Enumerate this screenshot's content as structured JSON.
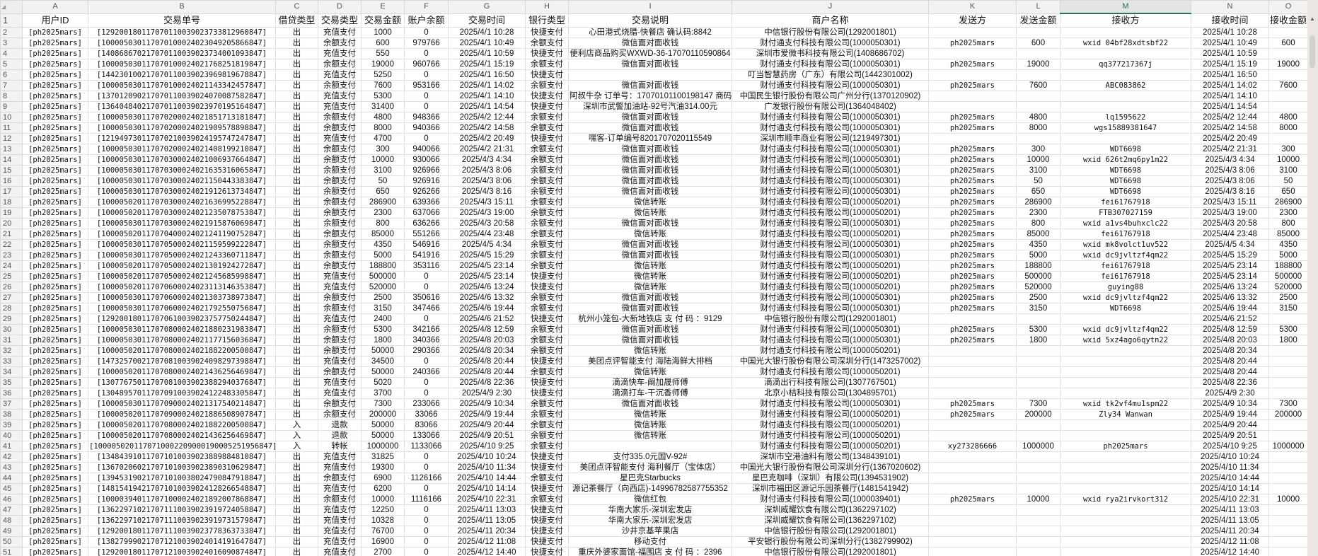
{
  "sheet": {
    "selected_column": "M",
    "accent_color": "#1e7a4b",
    "column_letters": [
      "A",
      "B",
      "C",
      "D",
      "E",
      "F",
      "G",
      "H",
      "I",
      "J",
      "K",
      "L",
      "M",
      "N",
      "O"
    ],
    "header_row_number": "1",
    "headers": [
      "用户ID",
      "交易单号",
      "借贷类型",
      "交易类型",
      "交易金额",
      "账户余额",
      "交易时间",
      "银行类型",
      "交易说明",
      "商户名称",
      "发送方",
      "发送金额",
      "接收方",
      "接收时间",
      "接收金额"
    ],
    "rows": [
      [
        "2",
        "[ph2025mars]",
        "[129200180117070110039023733812960847]",
        "出",
        "充值支付",
        "1000",
        "0",
        "2025/4/1 10:28",
        "快捷支付",
        "心田港式烧腊-快餐店 确认码:8842",
        "中信银行股份有限公司(1292001801)",
        "",
        "",
        "",
        "2025/4/1 10:28",
        ""
      ],
      [
        "3",
        "[ph2025mars]",
        "[100005030117070100024023049205866847]",
        "出",
        "余额支付",
        "600",
        "979766",
        "2025/4/1 10:49",
        "余额支付",
        "微信面对面收钱",
        "财付通支付科技有限公司(1000050301)",
        "ph2025mars",
        "600",
        "wxid 04bf28xdtsbf22",
        "2025/4/1 10:49",
        "600"
      ],
      [
        "4",
        "[ph2025mars]",
        "[140868670217070110039023734001093847]",
        "出",
        "充值支付",
        "550",
        "0",
        "2025/4/1 10:59",
        "快捷支付",
        "便利店商品购买WXWD-36-17070110590864",
        "深圳市爱微书科技有限公司(1408686702)",
        "",
        "",
        "",
        "2025/4/1 10:59",
        ""
      ],
      [
        "5",
        "[ph2025mars]",
        "[100005030117070100024021768251819847]",
        "出",
        "余额支付",
        "19000",
        "960766",
        "2025/4/1 15:19",
        "余额支付",
        "微信面对面收钱",
        "财付通支付科技有限公司(1000050301)",
        "ph2025mars",
        "19000",
        "qq377217367j",
        "2025/4/1 15:19",
        "19000"
      ],
      [
        "6",
        "[ph2025mars]",
        "[144230100217070110039023969819678847]",
        "出",
        "充值支付",
        "5250",
        "0",
        "2025/4/1 16:50",
        "快捷支付",
        "",
        "叮当智慧药房（广东）有限公司(1442301002)",
        "",
        "",
        "",
        "2025/4/1 16:50",
        ""
      ],
      [
        "7",
        "[ph2025mars]",
        "[100005030117070100024021143342457847]",
        "出",
        "余额支付",
        "7600",
        "953166",
        "2025/4/1 14:02",
        "余额支付",
        "微信面对面收钱",
        "财付通支付科技有限公司(1000050301)",
        "ph2025mars",
        "7600",
        "ABC083862",
        "2025/4/1 14:02",
        "7600"
      ],
      [
        "8",
        "[ph2025mars]",
        "[137012090217070110039024070087582847]",
        "出",
        "充值支付",
        "5300",
        "0",
        "2025/4/1 14:10",
        "快捷支付",
        "阿叔牛杂 订单号：17070101100198147 商码",
        "中国民生银行股份有限公司广州分行(1370120902)",
        "",
        "",
        "",
        "2025/4/1 14:10",
        ""
      ],
      [
        "9",
        "[ph2025mars]",
        "[136404840217070110039023970195164847]",
        "出",
        "充值支付",
        "31400",
        "0",
        "2025/4/1 14:54",
        "快捷支付",
        "深圳市武警加油站-92号汽油314.00元",
        "广发银行股份有限公司(1364048402)",
        "",
        "",
        "",
        "2025/4/1 14:54",
        ""
      ],
      [
        "10",
        "[ph2025mars]",
        "[100005030117070200024021851713181847]",
        "出",
        "余额支付",
        "4800",
        "948366",
        "2025/4/2 12:44",
        "余额支付",
        "微信面对面收钱",
        "财付通支付科技有限公司(1000050301)",
        "ph2025mars",
        "4800",
        "lq1595622",
        "2025/4/2 12:44",
        "4800"
      ],
      [
        "11",
        "[ph2025mars]",
        "[100005030117070200024021909578898847]",
        "出",
        "余额支付",
        "8000",
        "940366",
        "2025/4/2 14:58",
        "余额支付",
        "微信面对面收钱",
        "财付通支付科技有限公司(1000050301)",
        "ph2025mars",
        "8000",
        "wgs15889381647",
        "2025/4/2 14:58",
        "8000"
      ],
      [
        "12",
        "[ph2025mars]",
        "[121949730117070210039024195747247847]",
        "出",
        "充值支付",
        "4700",
        "0",
        "2025/4/2 20:49",
        "快捷支付",
        "嘿客-订单编号8201707020115549",
        "深圳市顺丰商业有限公司(1219497301)",
        "",
        "",
        "",
        "2025/4/2 20:49",
        ""
      ],
      [
        "13",
        "[ph2025mars]",
        "[100005030117070200024021408199210847]",
        "出",
        "余额支付",
        "300",
        "940066",
        "2025/4/2 21:31",
        "余额支付",
        "微信面对面收钱",
        "财付通支付科技有限公司(1000050301)",
        "ph2025mars",
        "300",
        "WDT6698",
        "2025/4/2 21:31",
        "300"
      ],
      [
        "14",
        "[ph2025mars]",
        "[100005030117070300024021006937664847]",
        "出",
        "余额支付",
        "10000",
        "930066",
        "2025/4/3 4:34",
        "余额支付",
        "微信面对面收钱",
        "财付通支付科技有限公司(1000050301)",
        "ph2025mars",
        "10000",
        "wxid 626t2mq6py1m22",
        "2025/4/3 4:34",
        "10000"
      ],
      [
        "15",
        "[ph2025mars]",
        "[100005030117070300024021635316065847]",
        "出",
        "余额支付",
        "3100",
        "926966",
        "2025/4/3 8:06",
        "余额支付",
        "微信面对面收钱",
        "财付通支付科技有限公司(1000050301)",
        "ph2025mars",
        "3100",
        "WDT6698",
        "2025/4/3 8:06",
        "3100"
      ],
      [
        "16",
        "[ph2025mars]",
        "[100005030117070300024021150443383847]",
        "出",
        "余额支付",
        "50",
        "926916",
        "2025/4/3 8:06",
        "余额支付",
        "微信面对面收钱",
        "财付通支付科技有限公司(1000050301)",
        "ph2025mars",
        "50",
        "WDT6698",
        "2025/4/3 8:06",
        "50"
      ],
      [
        "17",
        "[ph2025mars]",
        "[100005030117070300024021912613734847]",
        "出",
        "余额支付",
        "650",
        "926266",
        "2025/4/3 8:16",
        "余额支付",
        "微信面对面收钱",
        "财付通支付科技有限公司(1000050301)",
        "ph2025mars",
        "650",
        "WDT6698",
        "2025/4/3 8:16",
        "650"
      ],
      [
        "18",
        "[ph2025mars]",
        "[100005020117070300024021636995228847]",
        "出",
        "余额支付",
        "286900",
        "639366",
        "2025/4/3 15:11",
        "余额支付",
        "微信转账",
        "财付通支付科技有限公司(1000050201)",
        "ph2025mars",
        "286900",
        "fei61767918",
        "2025/4/3 15:11",
        "286900"
      ],
      [
        "19",
        "[ph2025mars]",
        "[100005020117070300024021235078753847]",
        "出",
        "余额支付",
        "2300",
        "637066",
        "2025/4/3 19:00",
        "余额支付",
        "微信转账",
        "财付通支付科技有限公司(1000050201)",
        "ph2025mars",
        "2300",
        "FTB307027159",
        "2025/4/3 19:00",
        "2300"
      ],
      [
        "20",
        "[ph2025mars]",
        "[100005030117070300024021915876069847]",
        "出",
        "余额支付",
        "800",
        "636266",
        "2025/4/3 20:58",
        "余额支付",
        "微信面对面收钱",
        "财付通支付科技有限公司(1000050301)",
        "ph2025mars",
        "800",
        "wxid a1vs4buhxclc22",
        "2025/4/3 20:58",
        "800"
      ],
      [
        "21",
        "[ph2025mars]",
        "[100005020117070400024021241190752847]",
        "出",
        "余额支付",
        "85000",
        "551266",
        "2025/4/4 23:48",
        "余额支付",
        "微信转账",
        "财付通支付科技有限公司(1000050201)",
        "ph2025mars",
        "85000",
        "fei61767918",
        "2025/4/4 23:48",
        "85000"
      ],
      [
        "22",
        "[ph2025mars]",
        "[100005030117070500024021159599222847]",
        "出",
        "余额支付",
        "4350",
        "546916",
        "2025/4/5 4:34",
        "余额支付",
        "微信面对面收钱",
        "财付通支付科技有限公司(1000050301)",
        "ph2025mars",
        "4350",
        "wxid mk8volct1uv522",
        "2025/4/5 4:34",
        "4350"
      ],
      [
        "23",
        "[ph2025mars]",
        "[100005030117070500024021243360711847]",
        "出",
        "余额支付",
        "5000",
        "541916",
        "2025/4/5 15:29",
        "余额支付",
        "微信面对面收钱",
        "财付通支付科技有限公司(1000050301)",
        "ph2025mars",
        "5000",
        "wxid dc9jvltzf4qm22",
        "2025/4/5 15:29",
        "5000"
      ],
      [
        "24",
        "[ph2025mars]",
        "[100005020117070500024021301924272847]",
        "出",
        "余额支付",
        "188800",
        "353116",
        "2025/4/5 23:14",
        "余额支付",
        "微信转账",
        "财付通支付科技有限公司(1000050201)",
        "ph2025mars",
        "188800",
        "fei61767918",
        "2025/4/5 23:14",
        "188800"
      ],
      [
        "25",
        "[ph2025mars]",
        "[100005020117070500024021245685998847]",
        "出",
        "充值支付",
        "500000",
        "0",
        "2025/4/5 23:14",
        "快捷支付",
        "微信转账",
        "财付通支付科技有限公司(1000050201)",
        "ph2025mars",
        "500000",
        "fei61767918",
        "2025/4/5 23:14",
        "500000"
      ],
      [
        "26",
        "[ph2025mars]",
        "[100005020117070600024023113146353847]",
        "出",
        "充值支付",
        "520000",
        "0",
        "2025/4/6 13:24",
        "快捷支付",
        "微信转账",
        "财付通支付科技有限公司(1000050201)",
        "ph2025mars",
        "520000",
        "guying88",
        "2025/4/6 13:24",
        "520000"
      ],
      [
        "27",
        "[ph2025mars]",
        "[100005030117070600024021303738973847]",
        "出",
        "余额支付",
        "2500",
        "350616",
        "2025/4/6 13:32",
        "余额支付",
        "微信面对面收钱",
        "财付通支付科技有限公司(1000050301)",
        "ph2025mars",
        "2500",
        "wxid dc9jvltzf4qm22",
        "2025/4/6 13:32",
        "2500"
      ],
      [
        "28",
        "[ph2025mars]",
        "[100005030117070600024021792550756847]",
        "出",
        "余额支付",
        "3150",
        "347466",
        "2025/4/6 19:44",
        "余额支付",
        "微信面对面收钱",
        "财付通支付科技有限公司(1000050301)",
        "ph2025mars",
        "3150",
        "WDT6698",
        "2025/4/6 19:44",
        "3150"
      ],
      [
        "29",
        "[ph2025mars]",
        "[129200180117070610039023757750244847]",
        "出",
        "充值支付",
        "2400",
        "0",
        "2025/4/6 21:52",
        "快捷支付",
        "杭州小笼包-大新地铁店 支 付 码 ：9129",
        "中信银行股份有限公司(1292001801)",
        "",
        "",
        "",
        "2025/4/6 21:52",
        ""
      ],
      [
        "30",
        "[ph2025mars]",
        "[100005030117070800024021880231983847]",
        "出",
        "余额支付",
        "5300",
        "342166",
        "2025/4/8 12:59",
        "余额支付",
        "微信面对面收钱",
        "财付通支付科技有限公司(1000050301)",
        "ph2025mars",
        "5300",
        "wxid dc9jvltzf4qm22",
        "2025/4/8 12:59",
        "5300"
      ],
      [
        "31",
        "[ph2025mars]",
        "[100005030117070800024021177156036847]",
        "出",
        "余额支付",
        "1800",
        "340366",
        "2025/4/8 20:03",
        "余额支付",
        "微信面对面收钱",
        "财付通支付科技有限公司(1000050301)",
        "ph2025mars",
        "1800",
        "wxid 5xz4ago6qytn22",
        "2025/4/8 20:03",
        "1800"
      ],
      [
        "32",
        "[ph2025mars]",
        "[100005020117070800024021882200500847]",
        "出",
        "余额支付",
        "50000",
        "290366",
        "2025/4/8 20:34",
        "余额支付",
        "微信转账",
        "财付通支付科技有限公司(1000050201)",
        "",
        "",
        "",
        "2025/4/8 20:34",
        ""
      ],
      [
        "33",
        "[ph2025mars]",
        "[147325700217070810039024098297398847]",
        "出",
        "充值支付",
        "34500",
        "0",
        "2025/4/8 20:44",
        "快捷支付",
        "美团点评智能支付 海陆海鲜大排档",
        "中国光大银行股份有限公司深圳分行(1473257002)",
        "",
        "",
        "",
        "2025/4/8 20:44",
        ""
      ],
      [
        "34",
        "[ph2025mars]",
        "[100005020117070800024021436256469847]",
        "出",
        "余额支付",
        "50000",
        "240366",
        "2025/4/8 20:44",
        "余额支付",
        "微信转账",
        "财付通支付科技有限公司(1000050201)",
        "",
        "",
        "",
        "2025/4/8 20:44",
        ""
      ],
      [
        "35",
        "[ph2025mars]",
        "[130776750117070810039023882940376847]",
        "出",
        "充值支付",
        "5020",
        "0",
        "2025/4/8 22:36",
        "快捷支付",
        "滴滴快车-阚加晟师傅",
        "滴滴出行科技有限公司(1307767501)",
        "",
        "",
        "",
        "2025/4/8 22:36",
        ""
      ],
      [
        "36",
        "[ph2025mars]",
        "[130489570117070910039024122483305847]",
        "出",
        "充值支付",
        "3700",
        "0",
        "2025/4/9 2:30",
        "快捷支付",
        "滴滴打车-干沉香师傅",
        "北京小桔科技有限公司(1304895701)",
        "",
        "",
        "",
        "2025/4/9 2:30",
        ""
      ],
      [
        "37",
        "[ph2025mars]",
        "[100005030117070900024021317540214847]",
        "出",
        "余额支付",
        "7300",
        "233066",
        "2025/4/9 10:34",
        "余额支付",
        "微信面对面收钱",
        "财付通支付科技有限公司(1000050301)",
        "ph2025mars",
        "7300",
        "wxid tk2vf4mu1spm22",
        "2025/4/9 10:34",
        "7300"
      ],
      [
        "38",
        "[ph2025mars]",
        "[100005020117070900024021886508907847]",
        "出",
        "余额支付",
        "200000",
        "33066",
        "2025/4/9 19:44",
        "余额支付",
        "微信转账",
        "财付通支付科技有限公司(1000050201)",
        "ph2025mars",
        "200000",
        "Zly34 Wanwan",
        "2025/4/9 19:44",
        "200000"
      ],
      [
        "39",
        "[ph2025mars]",
        "[100005020117070800024021882200500847]",
        "入",
        "退款",
        "50000",
        "83066",
        "2025/4/9 20:44",
        "余额支付",
        "微信转账",
        "财付通支付科技有限公司(1000050201)",
        "",
        "",
        "",
        "2025/4/9 20:44",
        ""
      ],
      [
        "40",
        "[ph2025mars]",
        "[100005020117070800024021436256469847]",
        "入",
        "退款",
        "50000",
        "133066",
        "2025/4/9 20:51",
        "余额支付",
        "微信转账",
        "财付通支付科技有限公司(1000050201)",
        "",
        "",
        "",
        "2025/4/9 20:51",
        ""
      ],
      [
        "41",
        "[ph2025mars]",
        "[1000050201170710002209000190005251956847]",
        "入",
        "转帐",
        "1000000",
        "1133066",
        "2025/4/10 9:25",
        "余额支付",
        "",
        "财付通支付科技有限公司(1000050201)",
        "xy273286666",
        "1000000",
        "ph2025mars",
        "2025/4/10 9:25",
        "1000000"
      ],
      [
        "42",
        "[ph2025mars]",
        "[134843910117071010039023889884810847]",
        "出",
        "充值支付",
        "31825",
        "0",
        "2025/4/10 10:24",
        "快捷支付",
        "支付335.0元国V-92#",
        "深圳市空港油料有限公司(1348439101)",
        "",
        "",
        "",
        "2025/4/10 10:24",
        ""
      ],
      [
        "43",
        "[ph2025mars]",
        "[136702060217071010039023890310629847]",
        "出",
        "充值支付",
        "19300",
        "0",
        "2025/4/10 11:34",
        "快捷支付",
        "美团点评智能支付 海利餐厅（宝体店）",
        "中国光大银行股份有限公司深圳分行(1367020602)",
        "",
        "",
        "",
        "2025/4/10 11:34",
        ""
      ],
      [
        "44",
        "[ph2025mars]",
        "[139453190217071010038024790847918847]",
        "出",
        "余额支付",
        "6900",
        "1126166",
        "2025/4/10 14:44",
        "余额支付",
        "星巴克Starbucks",
        "星巴克咖啡（深圳）有限公司(1394531902)",
        "",
        "",
        "",
        "2025/4/10 14:44",
        ""
      ],
      [
        "45",
        "[ph2025mars]",
        "[148154194217071010039024128266548847]",
        "出",
        "充值支付",
        "6200",
        "0",
        "2025/4/10 14:14",
        "快捷支付",
        "源记茶餐厅（向西店)-14996782587755352",
        "深圳市福田区源记乐园茶餐厅(1481541942)",
        "",
        "",
        "",
        "2025/4/10 14:14",
        ""
      ],
      [
        "46",
        "[ph2025mars]",
        "[100003940117071000024021892007868847]",
        "出",
        "余额支付",
        "10000",
        "1116166",
        "2025/4/10 22:31",
        "余额支付",
        "微信红包",
        "财付通支付科技有限公司(1000039401)",
        "ph2025mars",
        "10000",
        "wxid rya2irvkort312",
        "2025/4/10 22:31",
        "10000"
      ],
      [
        "47",
        "[ph2025mars]",
        "[136229710217071110039023919724058847]",
        "出",
        "充值支付",
        "12250",
        "0",
        "2025/4/11 13:03",
        "快捷支付",
        "华南大家乐-深圳宏发店",
        "深圳威耀饮食有限公司(1362297102)",
        "",
        "",
        "",
        "2025/4/11 13:03",
        ""
      ],
      [
        "48",
        "[ph2025mars]",
        "[136229710217071110039023919731579847]",
        "出",
        "充值支付",
        "10328",
        "0",
        "2025/4/11 13:05",
        "快捷支付",
        "华南大家乐-深圳宏发店",
        "深圳威耀饮食有限公司(1362297102)",
        "",
        "",
        "",
        "2025/4/11 13:05",
        ""
      ],
      [
        "49",
        "[ph2025mars]",
        "[129200180117071110039023778363733847]",
        "出",
        "充值支付",
        "76700",
        "0",
        "2025/4/11 20:34",
        "快捷支付",
        "沙井京基苹果店",
        "中信银行股份有限公司(1292001801)",
        "",
        "",
        "",
        "2025/4/11 20:34",
        ""
      ],
      [
        "50",
        "[ph2025mars]",
        "[138279990217071210039024014191647847]",
        "出",
        "充值支付",
        "16900",
        "0",
        "2025/4/12 11:08",
        "快捷支付",
        "移动支付",
        "平安银行股份有限公司深圳分行(1382799902)",
        "",
        "",
        "",
        "2025/4/12 11:08",
        ""
      ],
      [
        "51",
        "[ph2025mars]",
        "[129200180117071210039024016090874847]",
        "出",
        "充值支付",
        "2700",
        "0",
        "2025/4/12 14:40",
        "快捷支付",
        "重庆外婆家面馆-福围店 支 付 码 ：2396",
        "中信银行股份有限公司(1292001801)",
        "",
        "",
        "",
        "2025/4/12 14:40",
        ""
      ]
    ]
  }
}
